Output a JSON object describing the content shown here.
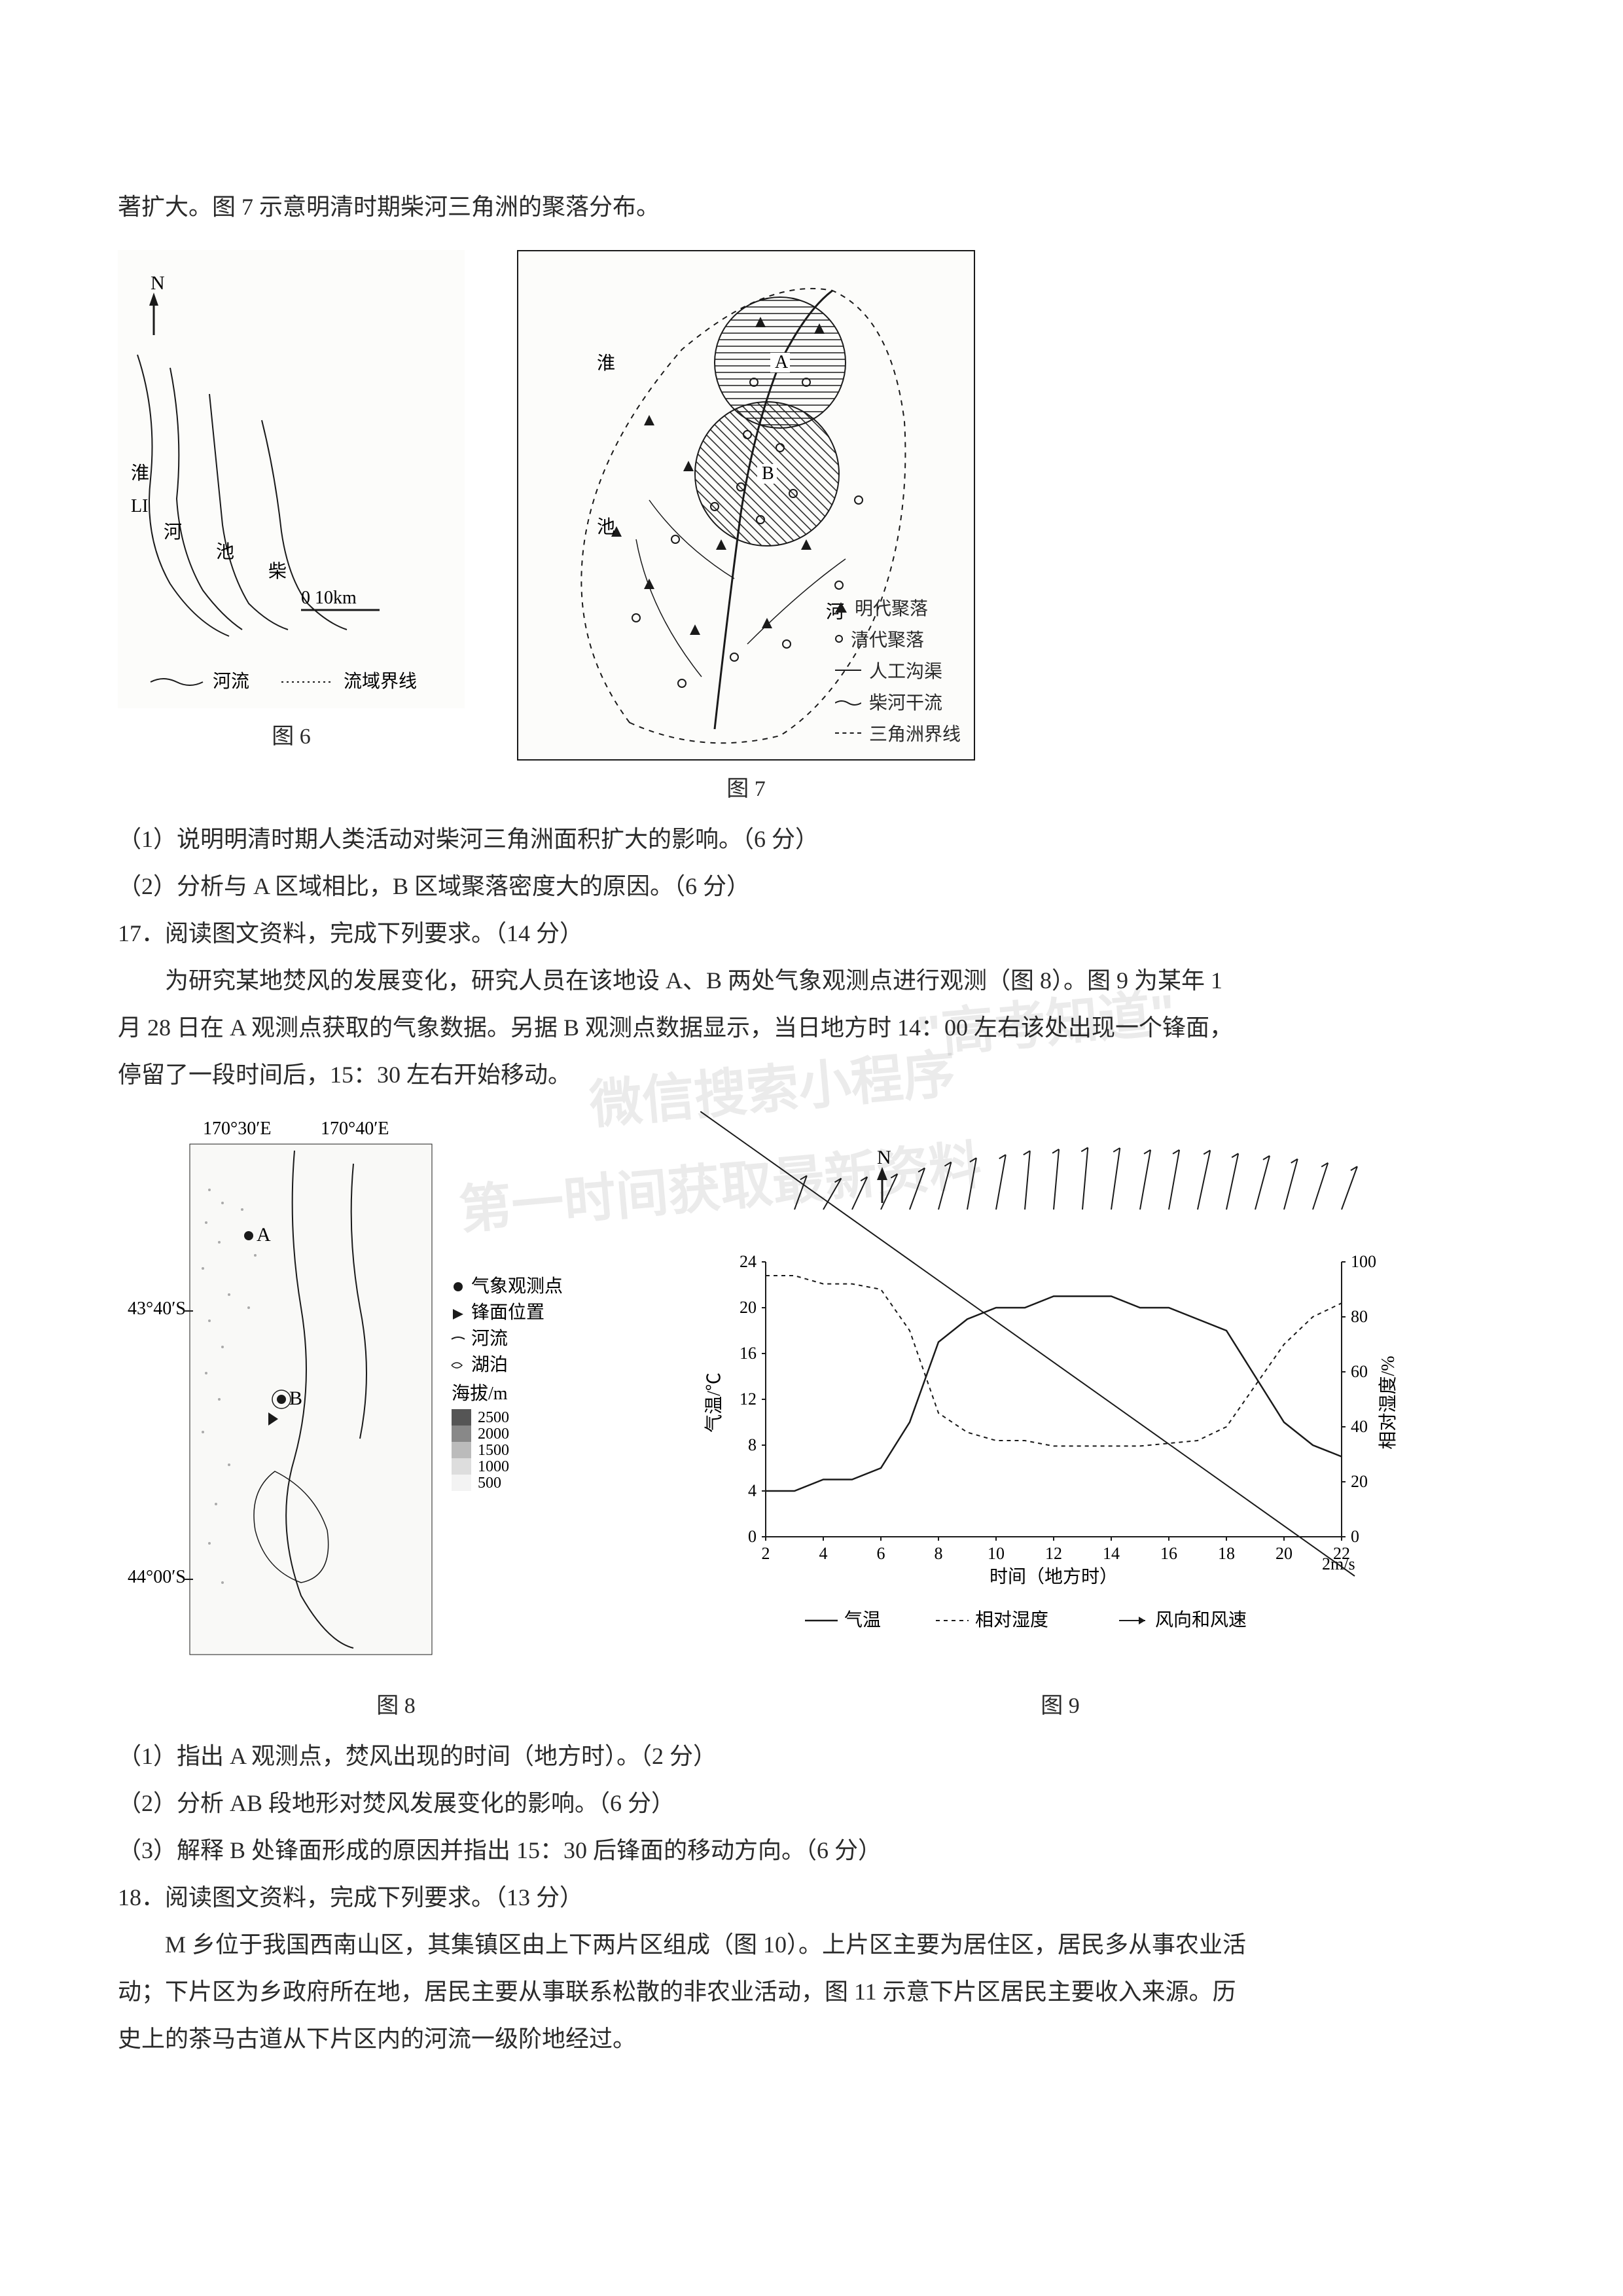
{
  "colors": {
    "text": "#2a2a2a",
    "border": "#1a1a1a",
    "background": "#ffffff",
    "grid": "#888888"
  },
  "typography": {
    "body_fontsize": 36,
    "caption_fontsize": 34,
    "legend_fontsize": 28
  },
  "intro_line": "著扩大。图 7 示意明清时期柴河三角洲的聚落分布。",
  "fig6": {
    "caption": "图 6",
    "north": "N",
    "rivers": [
      "淮",
      "河",
      "池",
      "柴"
    ],
    "scale_label": "0   10km",
    "legend_rivers": "河流",
    "legend_boundary": "流域界线"
  },
  "fig7": {
    "caption": "图 7",
    "labels": {
      "A": "A",
      "B": "B",
      "river1": "淮",
      "river2": "池",
      "river3": "河"
    },
    "legend": {
      "ming": "明代聚落",
      "qing": "清代聚落",
      "canal": "人工沟渠",
      "tributary": "柴河干流",
      "delta_boundary": "三角洲界线"
    }
  },
  "q16_1": "（1）说明明清时期人类活动对柴河三角洲面积扩大的影响。（6 分）",
  "q16_2": "（2）分析与 A 区域相比，B 区域聚落密度大的原因。（6 分）",
  "q17_header": "17．阅读图文资料，完成下列要求。（14 分）",
  "q17_body1": "为研究某地焚风的发展变化，研究人员在该地设 A、B 两处气象观测点进行观测（图 8）。图 9 为某年 1",
  "q17_body2": "月 28 日在 A 观测点获取的气象数据。另据 B 观测点数据显示，当日地方时 14：00 左右该处出现一个锋面，",
  "q17_body3": "停留了一段时间后，15：30 左右开始移动。",
  "fig8": {
    "caption": "图 8",
    "lon1": "170°30′E",
    "lon2": "170°40′E",
    "lat1": "43°40′S",
    "lat2": "44°00′S",
    "markers": {
      "A": "A",
      "B": "B"
    },
    "legend": {
      "obs": "气象观测点",
      "front": "锋面位置",
      "river": "河流",
      "lake": "湖泊",
      "elevation": "海拔/m",
      "elevs": [
        "2500",
        "2000",
        "1500",
        "1000",
        "500"
      ]
    }
  },
  "fig9": {
    "caption": "图 9",
    "north": "N",
    "y_left_label": "气温/℃",
    "y_right_label": "相对湿度/%",
    "x_label": "时间（地方时）",
    "y_left_ticks": [
      0,
      4,
      8,
      12,
      16,
      20,
      24
    ],
    "y_right_ticks": [
      0,
      20,
      40,
      60,
      80,
      100
    ],
    "x_ticks": [
      2,
      4,
      6,
      8,
      10,
      12,
      14,
      16,
      18,
      20,
      22
    ],
    "wind_label": "2m/s",
    "legend": {
      "temp": "气温",
      "humidity": "相对湿度",
      "wind": "风向和风速"
    },
    "temp_series": [
      {
        "x": 2,
        "y": 4
      },
      {
        "x": 3,
        "y": 4
      },
      {
        "x": 4,
        "y": 5
      },
      {
        "x": 5,
        "y": 5
      },
      {
        "x": 6,
        "y": 6
      },
      {
        "x": 7,
        "y": 10
      },
      {
        "x": 8,
        "y": 17
      },
      {
        "x": 9,
        "y": 19
      },
      {
        "x": 10,
        "y": 20
      },
      {
        "x": 11,
        "y": 20
      },
      {
        "x": 12,
        "y": 21
      },
      {
        "x": 13,
        "y": 21
      },
      {
        "x": 14,
        "y": 21
      },
      {
        "x": 15,
        "y": 20
      },
      {
        "x": 16,
        "y": 20
      },
      {
        "x": 17,
        "y": 19
      },
      {
        "x": 18,
        "y": 18
      },
      {
        "x": 19,
        "y": 14
      },
      {
        "x": 20,
        "y": 10
      },
      {
        "x": 21,
        "y": 8
      },
      {
        "x": 22,
        "y": 7
      }
    ],
    "humidity_series": [
      {
        "x": 2,
        "y": 95
      },
      {
        "x": 3,
        "y": 95
      },
      {
        "x": 4,
        "y": 92
      },
      {
        "x": 5,
        "y": 92
      },
      {
        "x": 6,
        "y": 90
      },
      {
        "x": 7,
        "y": 75
      },
      {
        "x": 8,
        "y": 45
      },
      {
        "x": 9,
        "y": 38
      },
      {
        "x": 10,
        "y": 35
      },
      {
        "x": 11,
        "y": 35
      },
      {
        "x": 12,
        "y": 33
      },
      {
        "x": 13,
        "y": 33
      },
      {
        "x": 14,
        "y": 33
      },
      {
        "x": 15,
        "y": 33
      },
      {
        "x": 16,
        "y": 34
      },
      {
        "x": 17,
        "y": 35
      },
      {
        "x": 18,
        "y": 40
      },
      {
        "x": 19,
        "y": 55
      },
      {
        "x": 20,
        "y": 70
      },
      {
        "x": 21,
        "y": 80
      },
      {
        "x": 22,
        "y": 85
      }
    ],
    "xlim": [
      2,
      22
    ],
    "ylim_left": [
      0,
      24
    ],
    "ylim_right": [
      0,
      100
    ],
    "wind_arrows": [
      {
        "x": 3,
        "dir": 20,
        "len": 1
      },
      {
        "x": 4,
        "dir": 30,
        "len": 1
      },
      {
        "x": 5,
        "dir": 25,
        "len": 1
      },
      {
        "x": 6,
        "dir": 25,
        "len": 1.2
      },
      {
        "x": 7,
        "dir": 20,
        "len": 1.5
      },
      {
        "x": 8,
        "dir": 15,
        "len": 1.8
      },
      {
        "x": 9,
        "dir": 10,
        "len": 2
      },
      {
        "x": 10,
        "dir": 10,
        "len": 2.2
      },
      {
        "x": 11,
        "dir": 5,
        "len": 2.4
      },
      {
        "x": 12,
        "dir": 5,
        "len": 2.5
      },
      {
        "x": 13,
        "dir": 5,
        "len": 2.6
      },
      {
        "x": 14,
        "dir": 8,
        "len": 2.6
      },
      {
        "x": 15,
        "dir": 10,
        "len": 2.5
      },
      {
        "x": 16,
        "dir": 10,
        "len": 2.5
      },
      {
        "x": 17,
        "dir": 12,
        "len": 2.5
      },
      {
        "x": 18,
        "dir": 12,
        "len": 2.3
      },
      {
        "x": 19,
        "dir": 15,
        "len": 2.2
      },
      {
        "x": 20,
        "dir": 15,
        "len": 2
      },
      {
        "x": 21,
        "dir": 18,
        "len": 1.8
      },
      {
        "x": 22,
        "dir": 20,
        "len": 1.6
      }
    ]
  },
  "q17_1": "（1）指出 A 观测点，焚风出现的时间（地方时）。（2 分）",
  "q17_2": "（2）分析 AB 段地形对焚风发展变化的影响。（6 分）",
  "q17_3": "（3）解释 B 处锋面形成的原因并指出 15：30 后锋面的移动方向。（6 分）",
  "q18_header": "18．阅读图文资料，完成下列要求。（13 分）",
  "q18_body1": "M 乡位于我国西南山区，其集镇区由上下两片区组成（图 10）。上片区主要为居住区，居民多从事农业活",
  "q18_body2": "动；下片区为乡政府所在地，居民主要从事联系松散的非农业活动，图 11 示意下片区居民主要收入来源。历",
  "q18_body3": "史上的茶马古道从下片区内的河流一级阶地经过。",
  "watermark1": "微信搜索小程序",
  "watermark2": "第一时间获取最新资料",
  "watermark3": "\"高考知道\""
}
